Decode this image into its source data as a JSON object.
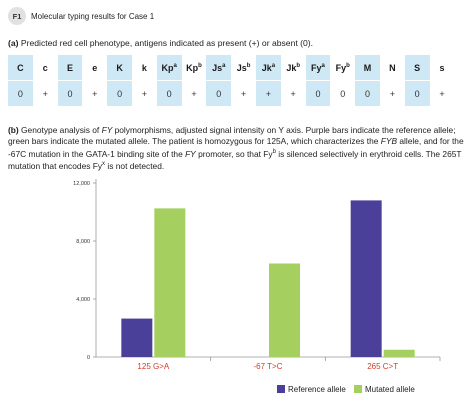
{
  "header": {
    "badge": "F1",
    "title": "Molecular typing results for Case 1"
  },
  "panel_a": {
    "label": "(a)",
    "caption": "Predicted red cell phenotype, antigens indicated as present (+) or absent (0).",
    "antigens": [
      {
        "name": "C",
        "sup": "",
        "value": "0",
        "shaded": true
      },
      {
        "name": "c",
        "sup": "",
        "value": "+",
        "shaded": false
      },
      {
        "name": "E",
        "sup": "",
        "value": "0",
        "shaded": true
      },
      {
        "name": "e",
        "sup": "",
        "value": "+",
        "shaded": false
      },
      {
        "name": "K",
        "sup": "",
        "value": "0",
        "shaded": true
      },
      {
        "name": "k",
        "sup": "",
        "value": "+",
        "shaded": false
      },
      {
        "name": "Kp",
        "sup": "a",
        "value": "0",
        "shaded": true
      },
      {
        "name": "Kp",
        "sup": "b",
        "value": "+",
        "shaded": false
      },
      {
        "name": "Js",
        "sup": "a",
        "value": "0",
        "shaded": true
      },
      {
        "name": "Js",
        "sup": "b",
        "value": "+",
        "shaded": false
      },
      {
        "name": "Jk",
        "sup": "a",
        "value": "+",
        "shaded": true
      },
      {
        "name": "Jk",
        "sup": "b",
        "value": "+",
        "shaded": false
      },
      {
        "name": "Fy",
        "sup": "a",
        "value": "0",
        "shaded": true
      },
      {
        "name": "Fy",
        "sup": "b",
        "value": "0",
        "shaded": false
      },
      {
        "name": "M",
        "sup": "",
        "value": "0",
        "shaded": true
      },
      {
        "name": "N",
        "sup": "",
        "value": "+",
        "shaded": false
      },
      {
        "name": "S",
        "sup": "",
        "value": "0",
        "shaded": true
      },
      {
        "name": "s",
        "sup": "",
        "value": "+",
        "shaded": false
      }
    ]
  },
  "panel_b": {
    "label": "(b)",
    "caption_parts": [
      {
        "t": "Genotype analysis of ",
        "i": false
      },
      {
        "t": "FY",
        "i": true
      },
      {
        "t": " polymorphisms, adjusted signal intensity on Y axis. Purple bars indicate the reference allele; green bars indicate the mutated allele. The patient is homozygous for 125A, which characterizes the ",
        "i": false
      },
      {
        "t": "FYB",
        "i": true
      },
      {
        "t": " allele, and for the -67C mutation in the GATA-1 binding site of the ",
        "i": false
      },
      {
        "t": "FY",
        "i": true
      },
      {
        "t": " promoter, so that Fy",
        "i": false
      },
      {
        "t": "b",
        "i": false,
        "sup": true
      },
      {
        "t": " is silenced selectively in erythroid cells. The 265T mutation that encodes Fy",
        "i": false
      },
      {
        "t": "x",
        "i": false,
        "sup": true
      },
      {
        "t": " is not detected.",
        "i": false
      }
    ]
  },
  "chart_data": {
    "type": "bar",
    "categories": [
      "125 G>A",
      "-67 T>C",
      "265 C>T"
    ],
    "series": [
      {
        "name": "Reference allele",
        "values": [
          2650,
          0,
          10800
        ],
        "color": "#4b4099"
      },
      {
        "name": "Mutated allele",
        "values": [
          10250,
          6450,
          500
        ],
        "color": "#a5cf5e"
      }
    ],
    "y_ticks": [
      "12,000",
      "8,000",
      "4,000",
      "0"
    ],
    "ylim": [
      0,
      12000
    ],
    "grid": false,
    "legend": "bottom-right",
    "category_label_color": "#d33a2a"
  }
}
